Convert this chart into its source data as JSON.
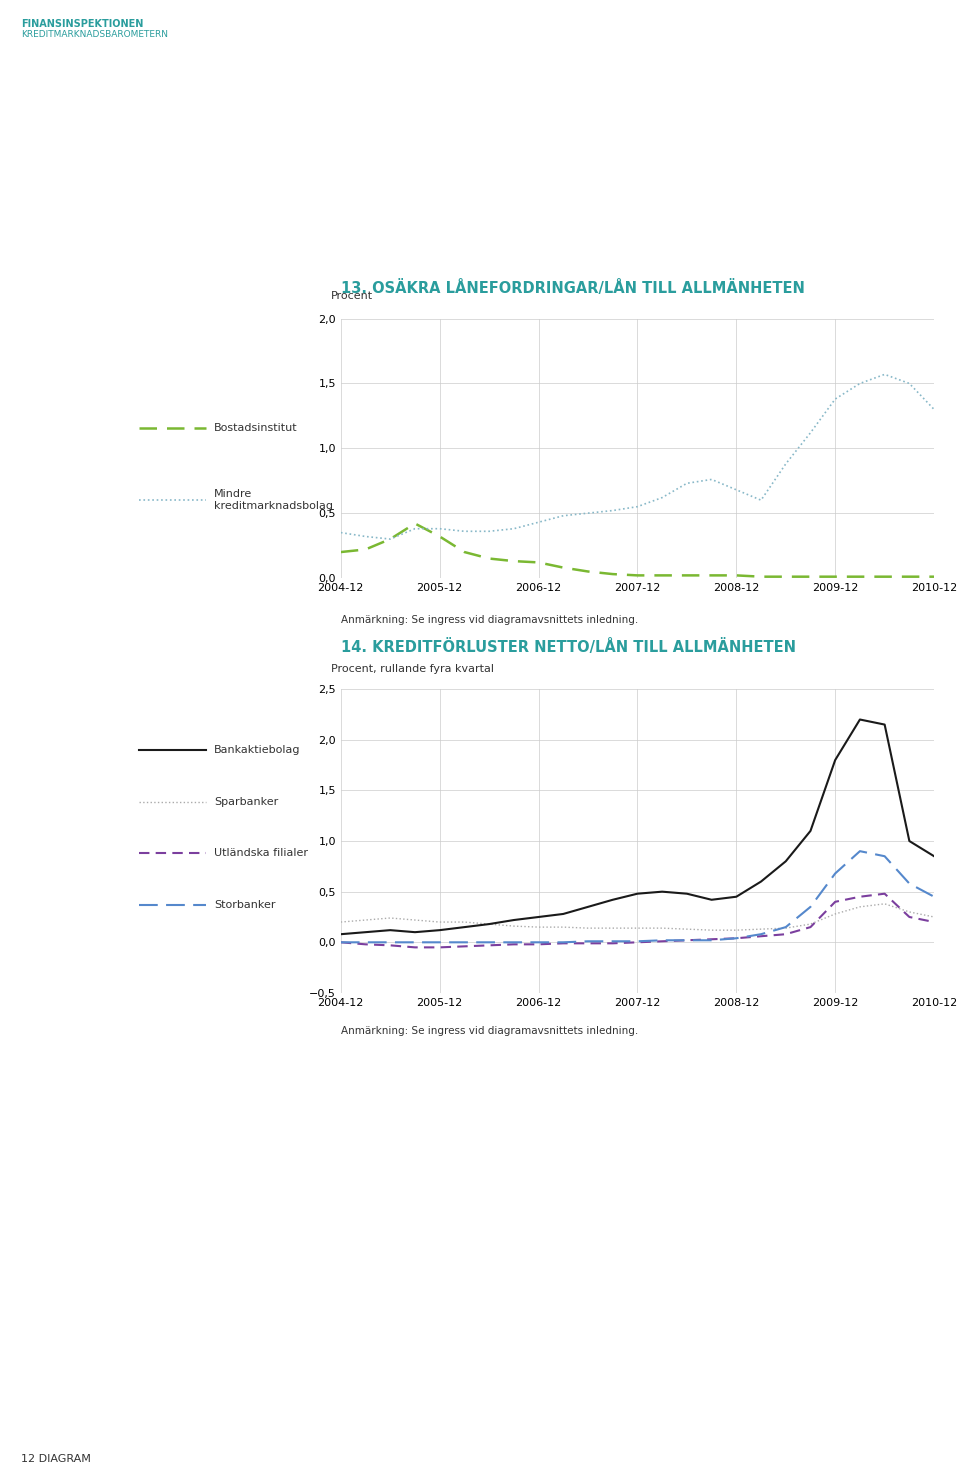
{
  "page_title_1": "FINANSINSPEKTIONEN",
  "page_title_2": "KREDITMARKNADSBAROMETERN",
  "page_number": "12 DIAGRAM",
  "chart1_title": "13. OSÄKRA LÅNEFORDRINGAR/LÅN TILL ALLMÄNHETEN",
  "chart1_ylabel": "Procent",
  "chart1_ylim": [
    0.0,
    2.0
  ],
  "chart1_yticks": [
    0.0,
    0.5,
    1.0,
    1.5,
    2.0
  ],
  "chart1_ytick_labels": [
    "0,0",
    "0,5",
    "1,0",
    "1,5",
    "2,0"
  ],
  "chart1_note": "Anmärkning: Se ingress vid diagramavsnittets inledning.",
  "chart2_title": "14. KREDITFÖRLUSTER NETTO/LÅN TILL ALLMÄNHETEN",
  "chart2_ylabel": "Procent, rullande fyra kvartal",
  "chart2_ylim": [
    -0.5,
    2.5
  ],
  "chart2_yticks": [
    -0.5,
    0.0,
    0.5,
    1.0,
    1.5,
    2.0,
    2.5
  ],
  "chart2_ytick_labels": [
    "−0,5",
    "0,0",
    "0,5",
    "1,0",
    "1,5",
    "2,0",
    "2,5"
  ],
  "chart2_note": "Anmärkning: Se ingress vid diagramavsnittets inledning.",
  "x_labels": [
    "2004-12",
    "2005-12",
    "2006-12",
    "2007-12",
    "2008-12",
    "2009-12",
    "2010-12"
  ],
  "n_points": 25,
  "chart1_bostadsinstitut": [
    0.2,
    0.22,
    0.3,
    0.42,
    0.32,
    0.2,
    0.15,
    0.13,
    0.12,
    0.08,
    0.05,
    0.03,
    0.02,
    0.02,
    0.02,
    0.02,
    0.02,
    0.01,
    0.01,
    0.01,
    0.01,
    0.01,
    0.01,
    0.01,
    0.01
  ],
  "chart1_mindre": [
    0.35,
    0.32,
    0.3,
    0.38,
    0.38,
    0.36,
    0.36,
    0.38,
    0.43,
    0.48,
    0.5,
    0.52,
    0.55,
    0.62,
    0.73,
    0.76,
    0.68,
    0.6,
    0.88,
    1.12,
    1.38,
    1.5,
    1.57,
    1.5,
    1.3
  ],
  "chart2_bankaktiebolag": [
    0.08,
    0.1,
    0.12,
    0.1,
    0.12,
    0.15,
    0.18,
    0.22,
    0.25,
    0.28,
    0.35,
    0.42,
    0.48,
    0.5,
    0.48,
    0.42,
    0.45,
    0.6,
    0.8,
    1.1,
    1.8,
    2.2,
    2.15,
    1.0,
    0.85
  ],
  "chart2_sparbanker": [
    0.2,
    0.22,
    0.24,
    0.22,
    0.2,
    0.2,
    0.18,
    0.16,
    0.15,
    0.15,
    0.14,
    0.14,
    0.14,
    0.14,
    0.13,
    0.12,
    0.12,
    0.13,
    0.14,
    0.18,
    0.28,
    0.35,
    0.38,
    0.3,
    0.25
  ],
  "chart2_utlandska": [
    0.0,
    -0.02,
    -0.03,
    -0.05,
    -0.05,
    -0.04,
    -0.03,
    -0.02,
    -0.02,
    -0.01,
    -0.01,
    -0.01,
    0.0,
    0.01,
    0.02,
    0.03,
    0.04,
    0.06,
    0.08,
    0.15,
    0.4,
    0.45,
    0.48,
    0.25,
    0.2
  ],
  "chart2_storbanker": [
    0.0,
    0.0,
    0.0,
    0.0,
    0.0,
    0.0,
    0.0,
    0.0,
    0.0,
    0.0,
    0.01,
    0.01,
    0.01,
    0.02,
    0.02,
    0.02,
    0.04,
    0.08,
    0.15,
    0.35,
    0.68,
    0.9,
    0.85,
    0.58,
    0.45
  ],
  "color_bostadsinstitut": "#7ab832",
  "color_mindre": "#88b8c8",
  "color_bankaktiebolag": "#1a1a1a",
  "color_sparbanker": "#aaaaaa",
  "color_utlandska": "#7b3f9e",
  "color_storbanker": "#5588cc",
  "color_header_teal": "#2a9d9d",
  "color_grid": "#cccccc",
  "background": "#ffffff"
}
